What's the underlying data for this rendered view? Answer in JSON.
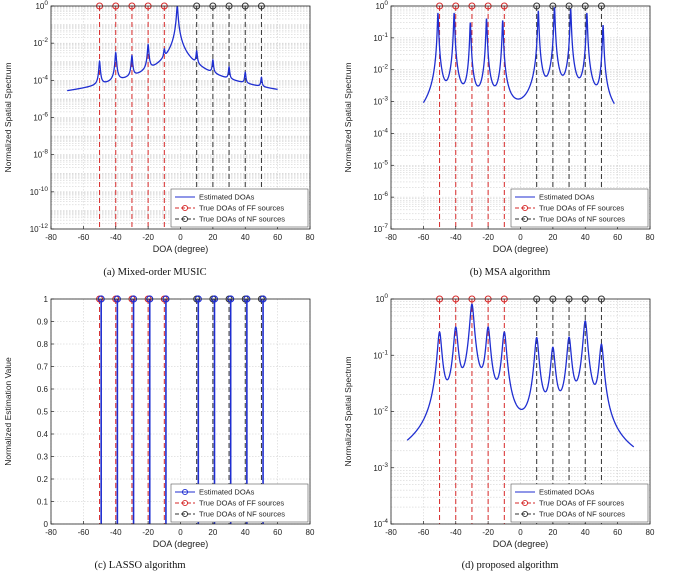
{
  "figure": {
    "colors": {
      "estimated": "#1f2ed1",
      "ff": "#d62828",
      "nf": "#333333",
      "grid": "#c8c8c8"
    }
  },
  "chart_data": [
    {
      "id": "a",
      "type": "line",
      "yscale": "log",
      "caption": "(a) Mixed-order MUSIC",
      "xlabel": "DOA (degree)",
      "ylabel": "Normalized Spatial Spectrum",
      "xlim": [
        -80,
        80
      ],
      "ylim": [
        1e-12,
        1
      ],
      "xticks": [
        "-80",
        "-60",
        "-40",
        "-20",
        "0",
        "20",
        "40",
        "60",
        "80"
      ],
      "yticks": [
        {
          "value": 1,
          "label": "10^0"
        },
        {
          "value": 0.01,
          "label": "10^-2"
        },
        {
          "value": 0.0001,
          "label": "10^-4"
        },
        {
          "value": 1e-06,
          "label": "10^-6"
        },
        {
          "value": 1e-08,
          "label": "10^-8"
        },
        {
          "value": 1e-10,
          "label": "10^-10"
        },
        {
          "value": 1e-12,
          "label": "10^-12"
        }
      ],
      "legend": {
        "position": "bottom-right",
        "entries": [
          "Estimated DOAs",
          "True DOAs of FF sources",
          "True DOAs of NF sources"
        ]
      },
      "true_ff": [
        -50,
        -40,
        -30,
        -20,
        -10
      ],
      "true_nf": [
        10,
        20,
        30,
        40,
        50
      ],
      "curve": {
        "range": [
          -70,
          60
        ],
        "base_center": 1e-08,
        "base_edge": 3e-11,
        "width": 0.35,
        "peaks": [
          {
            "x": -50,
            "y": 0.001
          },
          {
            "x": -40,
            "y": 0.003
          },
          {
            "x": -30,
            "y": 0.002
          },
          {
            "x": -20,
            "y": 0.008
          },
          {
            "x": -10,
            "y": 0.003
          },
          {
            "x": -2,
            "y": 1
          },
          {
            "x": 10,
            "y": 0.003
          },
          {
            "x": 20,
            "y": 0.001
          },
          {
            "x": 30,
            "y": 0.0004
          },
          {
            "x": 40,
            "y": 0.0002
          },
          {
            "x": 50,
            "y": 0.0001
          }
        ]
      }
    },
    {
      "id": "b",
      "type": "line",
      "yscale": "log",
      "caption": "(b) MSA algorithm",
      "xlabel": "DOA (degree)",
      "ylabel": "Normalized Spatial Spectrum",
      "xlim": [
        -80,
        80
      ],
      "ylim": [
        1e-07,
        1
      ],
      "xticks": [
        "-80",
        "-60",
        "-40",
        "-20",
        "0",
        "20",
        "40",
        "60",
        "80"
      ],
      "yticks": [
        {
          "value": 1,
          "label": "10^0"
        },
        {
          "value": 0.1,
          "label": "10^-1"
        },
        {
          "value": 0.01,
          "label": "10^-2"
        },
        {
          "value": 0.001,
          "label": "10^-3"
        },
        {
          "value": 0.0001,
          "label": "10^-4"
        },
        {
          "value": 1e-05,
          "label": "10^-5"
        },
        {
          "value": 1e-06,
          "label": "10^-6"
        },
        {
          "value": 1e-07,
          "label": "10^-7"
        }
      ],
      "legend": {
        "position": "bottom-right",
        "entries": [
          "Estimated DOAs",
          "True DOAs of FF sources",
          "True DOAs of NF sources"
        ]
      },
      "true_ff": [
        -50,
        -40,
        -30,
        -20,
        -10
      ],
      "true_nf": [
        10,
        20,
        30,
        40,
        50
      ],
      "curve": {
        "range": [
          -60,
          58
        ],
        "base_center": 4e-07,
        "base_edge": 2.5e-07,
        "width": 0.3,
        "peaks": [
          {
            "x": -51,
            "y": 0.6
          },
          {
            "x": -41,
            "y": 0.6
          },
          {
            "x": -31,
            "y": 0.3
          },
          {
            "x": -21,
            "y": 0.4
          },
          {
            "x": -11,
            "y": 0.35
          },
          {
            "x": 11,
            "y": 0.7
          },
          {
            "x": 21,
            "y": 0.9
          },
          {
            "x": 31,
            "y": 0.8
          },
          {
            "x": 41,
            "y": 0.6
          },
          {
            "x": 51,
            "y": 0.25
          }
        ]
      }
    },
    {
      "id": "c",
      "type": "stem",
      "yscale": "linear",
      "caption": "(c) LASSO algorithm",
      "xlabel": "DOA (degree)",
      "ylabel": "Normalized Estimation Value",
      "xlim": [
        -80,
        80
      ],
      "ylim": [
        0,
        1
      ],
      "xticks": [
        "-80",
        "-60",
        "-40",
        "-20",
        "0",
        "20",
        "40",
        "60",
        "80"
      ],
      "yticks": [
        {
          "value": 0,
          "label": "0"
        },
        {
          "value": 0.1,
          "label": "0.1"
        },
        {
          "value": 0.2,
          "label": "0.2"
        },
        {
          "value": 0.3,
          "label": "0.3"
        },
        {
          "value": 0.4,
          "label": "0.4"
        },
        {
          "value": 0.5,
          "label": "0.5"
        },
        {
          "value": 0.6,
          "label": "0.6"
        },
        {
          "value": 0.7,
          "label": "0.7"
        },
        {
          "value": 0.8,
          "label": "0.8"
        },
        {
          "value": 0.9,
          "label": "0.9"
        },
        {
          "value": 1,
          "label": "1"
        }
      ],
      "legend": {
        "position": "bottom-right",
        "entries": [
          "Estimated DOAs",
          "True DOAs of FF sources",
          "True DOAs of NF sources"
        ]
      },
      "true_ff": [
        -50,
        -40,
        -30,
        -20,
        -10
      ],
      "true_nf": [
        10,
        20,
        30,
        40,
        50
      ],
      "estimated": [
        -49,
        -39,
        -29,
        -19,
        -9,
        11,
        21,
        31,
        41,
        51
      ]
    },
    {
      "id": "d",
      "type": "line",
      "yscale": "log",
      "caption": "(d) proposed algorithm",
      "xlabel": "DOA (degree)",
      "ylabel": "Normalized Spatial Spectrum",
      "xlim": [
        -80,
        80
      ],
      "ylim": [
        0.0001,
        1
      ],
      "xticks": [
        "-80",
        "-60",
        "-40",
        "-20",
        "0",
        "20",
        "40",
        "60",
        "80"
      ],
      "yticks": [
        {
          "value": 1,
          "label": "10^0"
        },
        {
          "value": 0.1,
          "label": "10^-1"
        },
        {
          "value": 0.01,
          "label": "10^-2"
        },
        {
          "value": 0.001,
          "label": "10^-3"
        },
        {
          "value": 0.0001,
          "label": "10^-4"
        }
      ],
      "legend": {
        "position": "bottom-right",
        "entries": [
          "Estimated DOAs",
          "True DOAs of FF sources",
          "True DOAs of NF sources"
        ]
      },
      "true_ff": [
        -50,
        -40,
        -30,
        -20,
        -10
      ],
      "true_nf": [
        10,
        20,
        30,
        40,
        50
      ],
      "curve": {
        "range": [
          -70,
          70
        ],
        "base_center": 0.0006,
        "base_edge": 0.00055,
        "width": 1.2,
        "peaks": [
          {
            "x": -50,
            "y": 0.25
          },
          {
            "x": -40,
            "y": 0.3
          },
          {
            "x": -30,
            "y": 0.8
          },
          {
            "x": -20,
            "y": 0.3
          },
          {
            "x": -10,
            "y": 0.25
          },
          {
            "x": 10,
            "y": 0.2
          },
          {
            "x": 20,
            "y": 0.13
          },
          {
            "x": 30,
            "y": 0.2
          },
          {
            "x": 40,
            "y": 0.4
          },
          {
            "x": 50,
            "y": 0.15
          }
        ]
      }
    }
  ]
}
